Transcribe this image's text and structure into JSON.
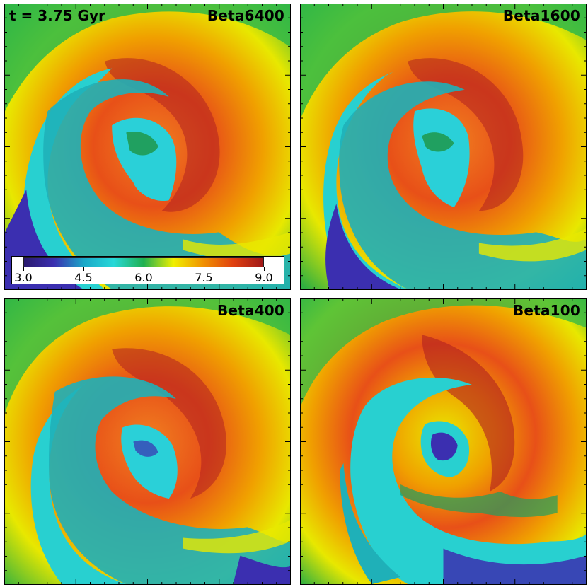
{
  "time_label": "t = 3.75 Gyr",
  "panels": [
    {
      "label": "Beta6400"
    },
    {
      "label": "Beta1600"
    },
    {
      "label": "Beta400"
    },
    {
      "label": "Beta100"
    }
  ],
  "colorbar": {
    "ticks": [
      "3.0",
      "4.5",
      "6.0",
      "7.5",
      "9.0"
    ],
    "min": 3.0,
    "max": 9.0,
    "colormap": [
      "#2a1a6e",
      "#3b2fb0",
      "#1aa8c8",
      "#28d8d8",
      "#1fb050",
      "#f0f000",
      "#f09000",
      "#e04010",
      "#a01818"
    ]
  }
}
